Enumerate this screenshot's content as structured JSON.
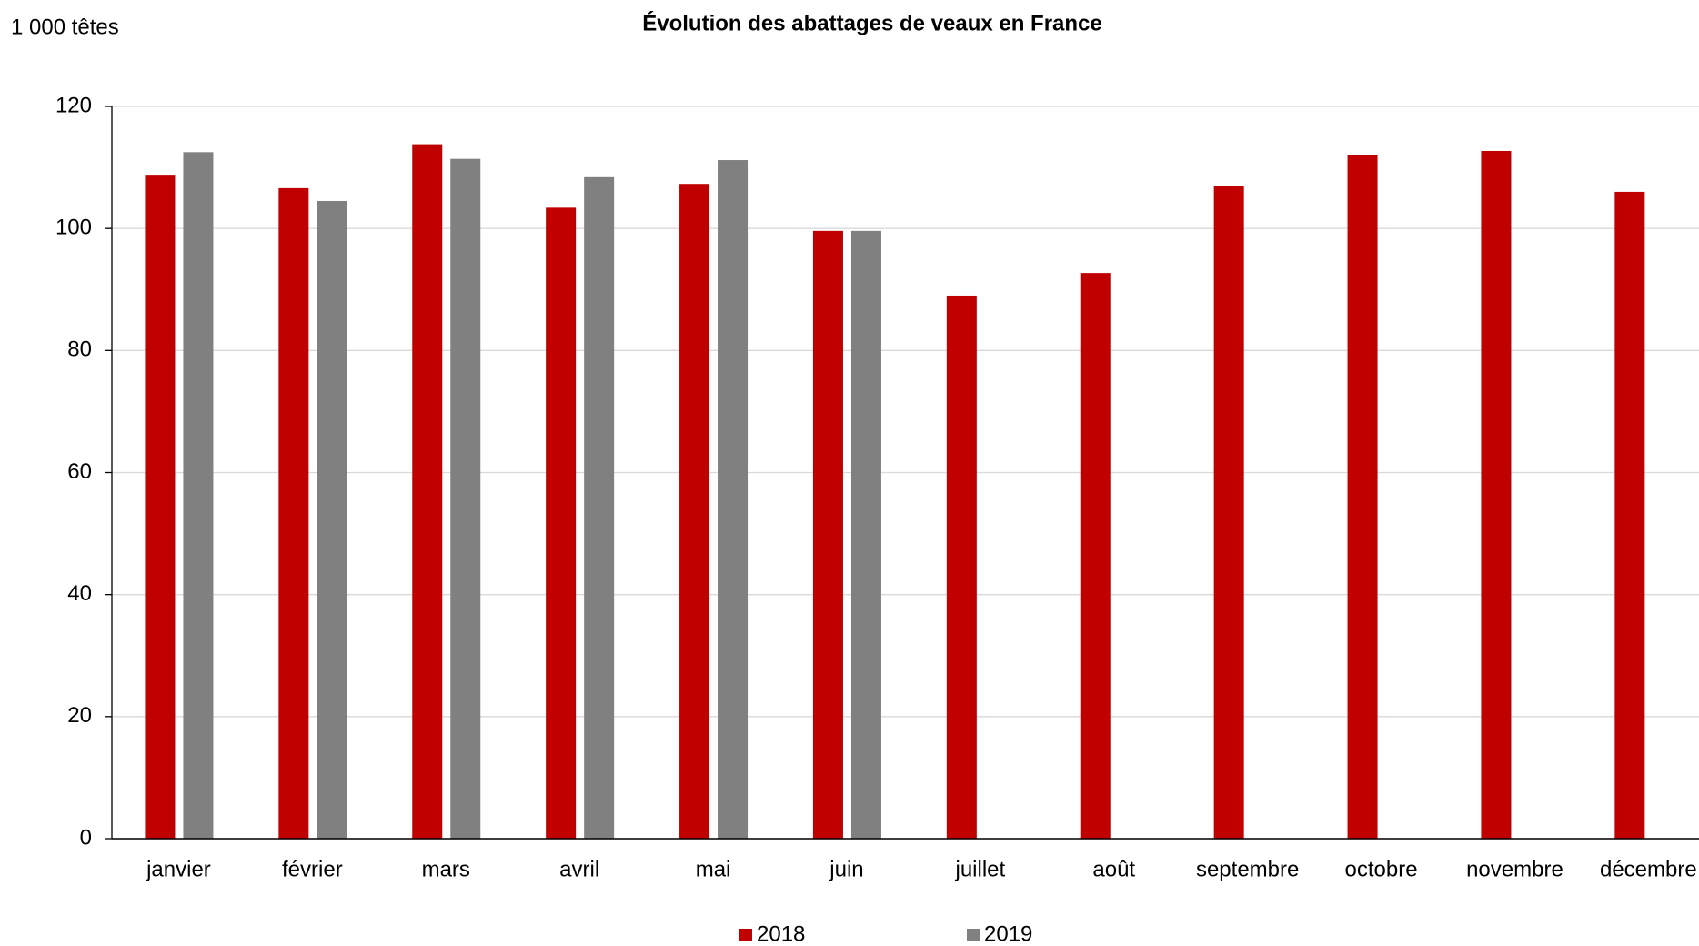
{
  "chart_data": {
    "type": "bar",
    "title": "Évolution des abattages de veaux en France",
    "y_label": "1 000 têtes",
    "categories": [
      "janvier",
      "février",
      "mars",
      "avril",
      "mai",
      "juin",
      "juillet",
      "août",
      "septembre",
      "octobre",
      "novembre",
      "décembre"
    ],
    "series": [
      {
        "name": "2018",
        "color": "#c00000",
        "values": [
          108.8,
          106.6,
          113.8,
          103.4,
          107.3,
          99.6,
          89.0,
          92.7,
          107.0,
          112.1,
          112.7,
          106.0
        ]
      },
      {
        "name": "2019",
        "color": "#808080",
        "values": [
          112.5,
          104.5,
          111.4,
          108.4,
          111.2,
          99.6,
          null,
          null,
          null,
          null,
          null,
          null
        ]
      }
    ],
    "ylim": [
      0,
      120
    ],
    "yticks": [
      0,
      20,
      40,
      60,
      80,
      100,
      120
    ],
    "grid": true,
    "legend": "bottom"
  }
}
